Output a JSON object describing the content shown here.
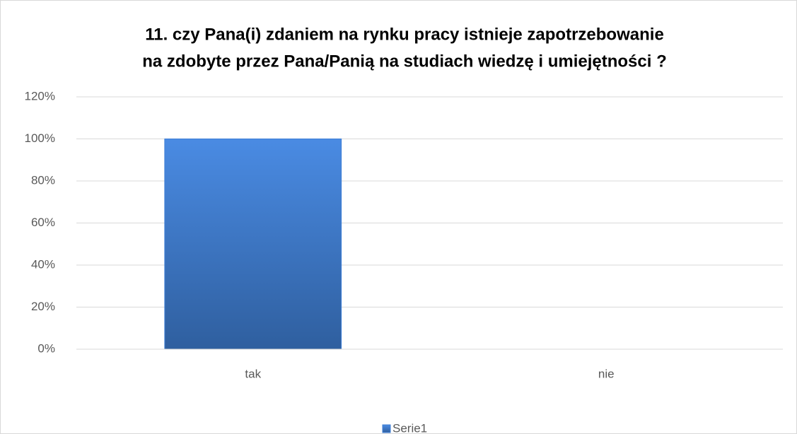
{
  "chart_data": {
    "type": "bar",
    "title": [
      "11. czy Pana(i) zdaniem na rynku pracy istnieje zapotrzebowanie",
      "na zdobyte przez Pana/Panią na studiach wiedzę i umiejętności ?"
    ],
    "categories": [
      "tak",
      "nie"
    ],
    "series": [
      {
        "name": "Serie1",
        "color": "#3f7fd6",
        "values": [
          100,
          0
        ]
      }
    ],
    "ylim": [
      0,
      120
    ],
    "yticks": [
      {
        "value": 0,
        "label": "0%"
      },
      {
        "value": 20,
        "label": "20%"
      },
      {
        "value": 40,
        "label": "40%"
      },
      {
        "value": 60,
        "label": "60%"
      },
      {
        "value": 80,
        "label": "80%"
      },
      {
        "value": 100,
        "label": "100%"
      },
      {
        "value": 120,
        "label": "120%"
      }
    ],
    "grid": true,
    "legend": "bottom"
  }
}
